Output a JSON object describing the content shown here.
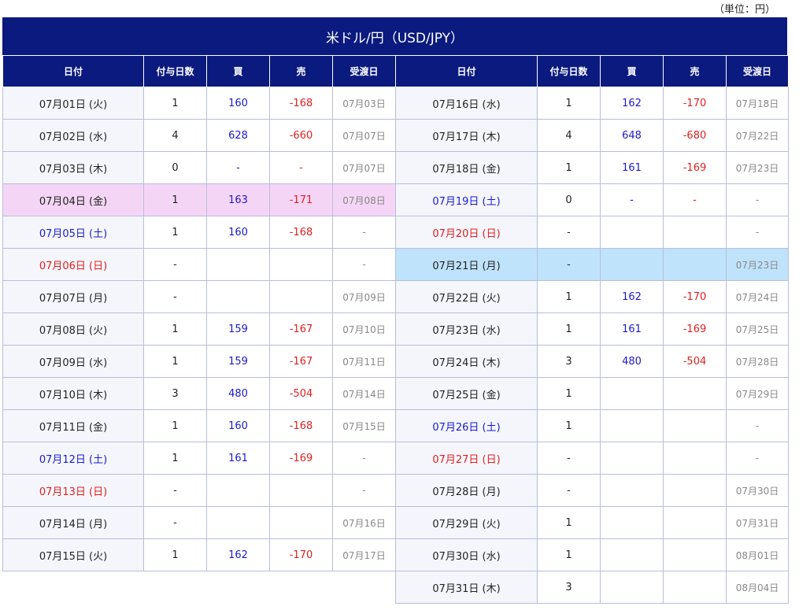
{
  "unit_label": "（単位：円）",
  "title": "米ドル/円（USD/JPY）",
  "left": {
    "columns": [
      "日付",
      "付与日数",
      "買",
      "売",
      "受渡日"
    ],
    "rows": [
      {
        "cells": [
          "07月01日 (火)",
          1,
          160,
          -168,
          "07月03日"
        ]
      },
      {
        "cells": [
          "07月02日 (水)",
          4,
          628,
          -660,
          "07月07日"
        ]
      },
      {
        "cells": [
          "07月03日 (木)",
          0,
          "-",
          "-",
          "07月07日"
        ]
      },
      {
        "cells": [
          "07月04日 (金)",
          1,
          163,
          -171,
          "07月08日"
        ],
        "highlight": "#f5d5f5"
      },
      {
        "cells": [
          "07月05日 (土)",
          1,
          160,
          -168,
          "-"
        ],
        "date_color": "#1a1acc"
      },
      {
        "cells": [
          "07月06日 (日)",
          "-",
          null,
          null,
          "-"
        ],
        "date_color": "#e02020"
      },
      {
        "cells": [
          "07月07日 (月)",
          "-",
          null,
          null,
          "07月09日"
        ]
      },
      {
        "cells": [
          "07月08日 (火)",
          1,
          159,
          -167,
          "07月10日"
        ]
      },
      {
        "cells": [
          "07月09日 (水)",
          1,
          159,
          -167,
          "07月11日"
        ]
      },
      {
        "cells": [
          "07月10日 (木)",
          3,
          480,
          -504,
          "07月14日"
        ]
      },
      {
        "cells": [
          "07月11日 (金)",
          1,
          160,
          -168,
          "07月15日"
        ]
      },
      {
        "cells": [
          "07月12日 (土)",
          1,
          161,
          -169,
          "-"
        ],
        "date_color": "#1a1acc"
      },
      {
        "cells": [
          "07月13日 (日)",
          "-",
          null,
          null,
          "-"
        ],
        "date_color": "#e02020"
      },
      {
        "cells": [
          "07月14日 (月)",
          "-",
          null,
          null,
          "07月16日"
        ]
      },
      {
        "cells": [
          "07月15日 (火)",
          1,
          162,
          -170,
          "07月17日"
        ]
      }
    ]
  },
  "right": {
    "columns": [
      "日付",
      "付与日数",
      "買",
      "売",
      "受渡日"
    ],
    "rows": [
      {
        "cells": [
          "07月16日 (水)",
          1,
          162,
          -170,
          "07月18日"
        ]
      },
      {
        "cells": [
          "07月17日 (木)",
          4,
          648,
          -680,
          "07月22日"
        ]
      },
      {
        "cells": [
          "07月18日 (金)",
          1,
          161,
          -169,
          "07月23日"
        ]
      },
      {
        "cells": [
          "07月19日 (土)",
          0,
          "-",
          "-",
          "-"
        ],
        "date_color": "#1a1acc"
      },
      {
        "cells": [
          "07月20日 (日)",
          "-",
          null,
          null,
          "-"
        ],
        "date_color": "#e02020"
      },
      {
        "cells": [
          "07月21日 (月)",
          "-",
          null,
          null,
          "07月23日"
        ],
        "highlight": "#bfe3fb"
      },
      {
        "cells": [
          "07月22日 (火)",
          1,
          162,
          -170,
          "07月24日"
        ]
      },
      {
        "cells": [
          "07月23日 (水)",
          1,
          161,
          -169,
          "07月25日"
        ]
      },
      {
        "cells": [
          "07月24日 (木)",
          3,
          480,
          -504,
          "07月28日"
        ]
      },
      {
        "cells": [
          "07月25日 (金)",
          1,
          null,
          null,
          "07月29日"
        ]
      },
      {
        "cells": [
          "07月26日 (土)",
          1,
          null,
          null,
          "-"
        ],
        "date_color": "#1a1acc"
      },
      {
        "cells": [
          "07月27日 (日)",
          "-",
          null,
          null,
          "-"
        ],
        "date_color": "#e02020"
      },
      {
        "cells": [
          "07月28日 (月)",
          "-",
          null,
          null,
          "07月30日"
        ]
      },
      {
        "cells": [
          "07月29日 (火)",
          1,
          null,
          null,
          "07月31日"
        ]
      },
      {
        "cells": [
          "07月30日 (水)",
          1,
          null,
          null,
          "08月01日"
        ]
      },
      {
        "cells": [
          "07月31日 (木)",
          3,
          null,
          null,
          "08月04日"
        ]
      }
    ]
  }
}
